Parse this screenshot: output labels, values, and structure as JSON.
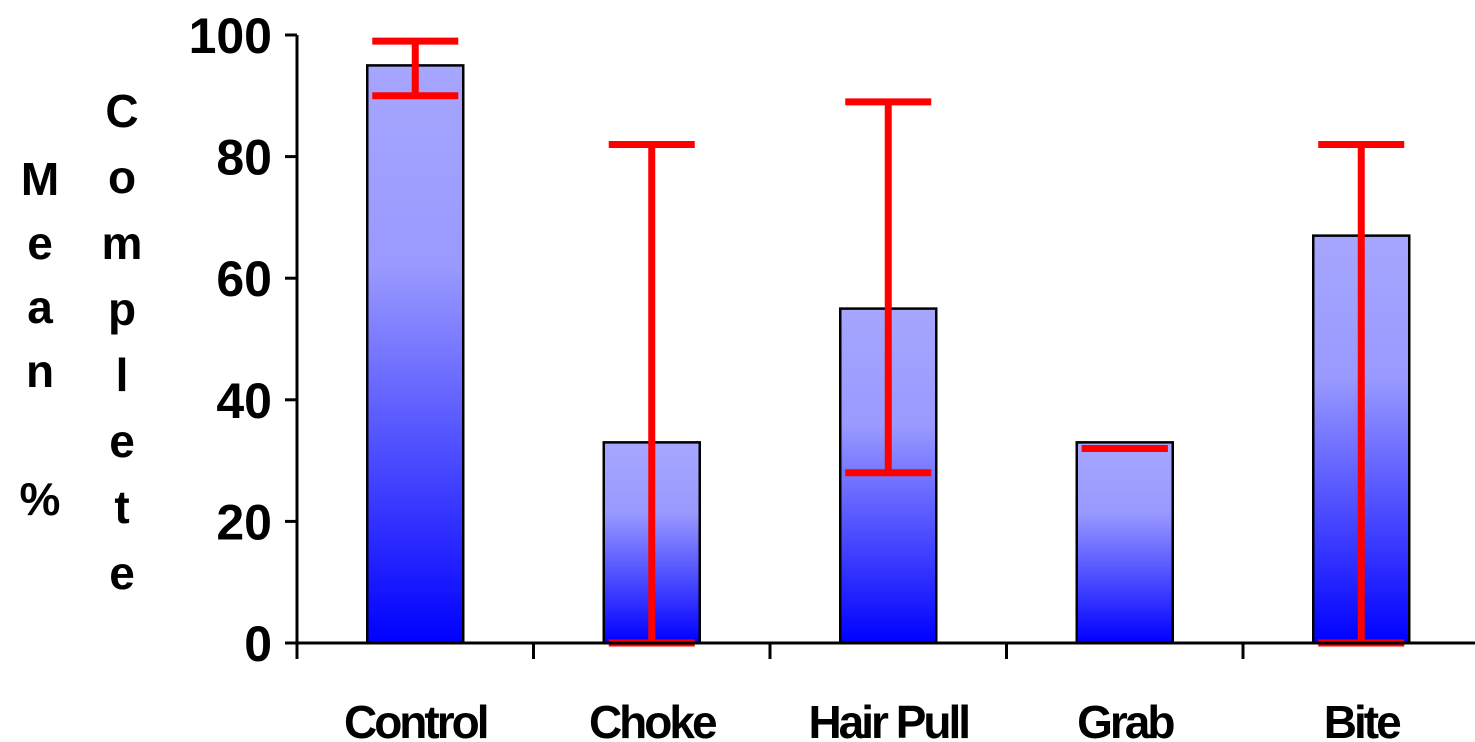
{
  "chart_data": {
    "type": "bar",
    "title": "",
    "xlabel": "",
    "ylabel_col1": "Mean %",
    "ylabel_col2": "Complete",
    "categories": [
      "Control",
      "Choke",
      "Hair Pull",
      "Grab",
      "Bite"
    ],
    "values": [
      95,
      33,
      55,
      33,
      67
    ],
    "error_bars": [
      {
        "high": 99,
        "low": 90
      },
      {
        "high": 82,
        "low": 0
      },
      {
        "high": 89,
        "low": 28
      },
      {
        "high": 32,
        "low": 32
      },
      {
        "high": 82,
        "low": 0
      }
    ],
    "ylim": [
      0,
      100
    ],
    "yticks": [
      0,
      20,
      40,
      60,
      80,
      100
    ],
    "grid": false,
    "legend": "none",
    "colors": {
      "bar_top": "#a6a6ff",
      "bar_bottom": "#0000ff",
      "bar_stroke": "#000000",
      "error_bar": "#ff0000",
      "axis": "#000000"
    }
  }
}
